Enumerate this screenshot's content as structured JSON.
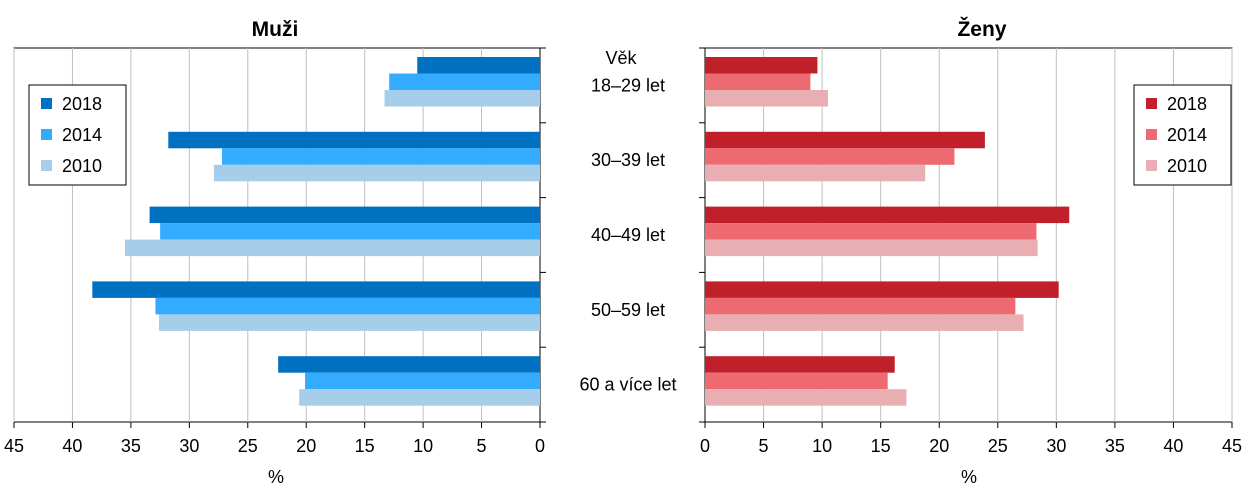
{
  "chart_data": [
    {
      "type": "bar",
      "orientation": "horizontal",
      "direction": "reversed",
      "title": "Muži",
      "xlabel": "%",
      "ylabel": "",
      "xlim": [
        0,
        45
      ],
      "x_ticks": [
        45,
        40,
        35,
        30,
        25,
        20,
        15,
        10,
        5,
        0
      ],
      "categories": [
        "18–29 let",
        "30–39 let",
        "40–49 let",
        "50–59 let",
        "60 a více let"
      ],
      "grid": "vertical",
      "legend_position": "top-left",
      "series": [
        {
          "name": "2018",
          "color": "#0070C0",
          "values": [
            10.5,
            31.8,
            33.4,
            38.3,
            22.4
          ]
        },
        {
          "name": "2014",
          "color": "#33ABFF",
          "values": [
            12.9,
            27.2,
            32.5,
            32.9,
            20.1
          ]
        },
        {
          "name": "2010",
          "color": "#A6CDEA",
          "values": [
            13.3,
            27.9,
            35.5,
            32.6,
            20.6
          ]
        }
      ]
    },
    {
      "type": "bar",
      "orientation": "horizontal",
      "title": "Ženy",
      "xlabel": "%",
      "ylabel": "",
      "category_header": "Věk",
      "xlim": [
        0,
        45
      ],
      "x_ticks": [
        0,
        5,
        10,
        15,
        20,
        25,
        30,
        35,
        40,
        45
      ],
      "categories": [
        "18–29 let",
        "30–39 let",
        "40–49 let",
        "50–59 let",
        "60 a více let"
      ],
      "grid": "vertical",
      "legend_position": "top-right",
      "series": [
        {
          "name": "2018",
          "color": "#C0202A",
          "values": [
            9.6,
            23.9,
            31.1,
            30.2,
            16.2
          ]
        },
        {
          "name": "2014",
          "color": "#EC6A70",
          "values": [
            9.0,
            21.3,
            28.3,
            26.5,
            15.6
          ]
        },
        {
          "name": "2010",
          "color": "#E9AEB1",
          "values": [
            10.5,
            18.8,
            28.4,
            27.2,
            17.2
          ]
        }
      ]
    }
  ]
}
